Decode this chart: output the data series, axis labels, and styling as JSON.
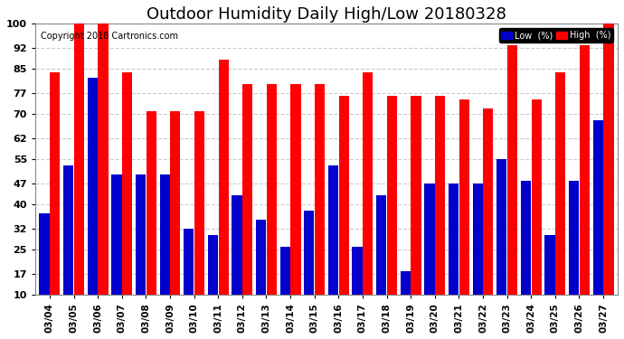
{
  "title": "Outdoor Humidity Daily High/Low 20180328",
  "copyright": "Copyright 2018 Cartronics.com",
  "dates": [
    "03/04",
    "03/05",
    "03/06",
    "03/07",
    "03/08",
    "03/09",
    "03/10",
    "03/11",
    "03/12",
    "03/13",
    "03/14",
    "03/15",
    "03/16",
    "03/17",
    "03/18",
    "03/19",
    "03/20",
    "03/21",
    "03/22",
    "03/23",
    "03/24",
    "03/25",
    "03/26",
    "03/27"
  ],
  "high": [
    84,
    100,
    100,
    84,
    71,
    71,
    71,
    88,
    80,
    80,
    80,
    80,
    76,
    84,
    76,
    76,
    76,
    75,
    72,
    93,
    75,
    84,
    93,
    100
  ],
  "low": [
    37,
    53,
    82,
    50,
    50,
    50,
    32,
    30,
    43,
    35,
    26,
    38,
    53,
    26,
    43,
    18,
    47,
    47,
    47,
    55,
    48,
    30,
    48,
    68
  ],
  "high_color": "#ff0000",
  "low_color": "#0000cc",
  "bg_color": "#ffffff",
  "plot_bg_color": "#ffffff",
  "grid_color": "#cccccc",
  "ylim": [
    10,
    100
  ],
  "yticks": [
    10,
    17,
    25,
    32,
    40,
    47,
    55,
    62,
    70,
    77,
    85,
    92,
    100
  ],
  "title_fontsize": 13,
  "copyright_fontsize": 7,
  "legend_low_label": "Low  (%)",
  "legend_high_label": "High  (%)"
}
